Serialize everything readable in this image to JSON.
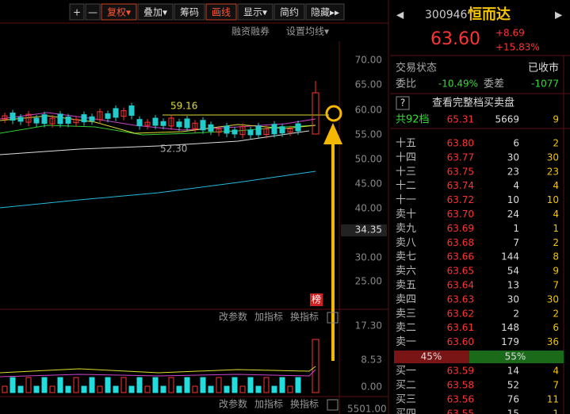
{
  "toolbar": {
    "buttons": [
      "+",
      "—",
      "复权▾",
      "叠加▾",
      "筹码",
      "画线",
      "显示▾",
      "简约",
      "隐藏▸▸"
    ],
    "links": [
      "融资融券",
      "设置均线▾"
    ]
  },
  "price_axis": [
    "70.00",
    "65.00",
    "60.00",
    "55.00",
    "50.00",
    "45.00",
    "40.00",
    "34.35",
    "30.00",
    "25.00"
  ],
  "annotations": {
    "high": "59.16",
    "low": "52.30",
    "badge": "榜"
  },
  "volume_panel": {
    "tools": [
      "改参数",
      "加指标",
      "换指标"
    ],
    "axis": [
      "17.30",
      "8.53",
      "0.00"
    ],
    "bottom_tools": [
      "改参数",
      "加指标",
      "换指标"
    ],
    "bottom_value": "5501.00"
  },
  "stock": {
    "code": "300946",
    "name": "恒而达",
    "price": "63.60",
    "change": "+8.69",
    "change_pct": "+15.83%"
  },
  "status": {
    "label": "交易状态",
    "value": "已收市"
  },
  "ratio": {
    "label": "委比",
    "value": "-10.49%",
    "diff_label": "委差",
    "diff_value": "-1077"
  },
  "full_book": {
    "icon": "?",
    "text": "查看完整档买卖盘"
  },
  "total": {
    "label": "共92档",
    "price": "65.31",
    "volume": "5669",
    "count": "9"
  },
  "asks": [
    [
      "十五",
      "63.80",
      "6",
      "2"
    ],
    [
      "十四",
      "63.77",
      "30",
      "30"
    ],
    [
      "十三",
      "63.75",
      "23",
      "23"
    ],
    [
      "十二",
      "63.74",
      "4",
      "4"
    ],
    [
      "十一",
      "63.72",
      "10",
      "10"
    ],
    [
      "卖十",
      "63.70",
      "24",
      "4"
    ],
    [
      "卖九",
      "63.69",
      "1",
      "1"
    ],
    [
      "卖八",
      "63.68",
      "7",
      "2"
    ],
    [
      "卖七",
      "63.66",
      "144",
      "8"
    ],
    [
      "卖六",
      "63.65",
      "54",
      "9"
    ],
    [
      "卖五",
      "63.64",
      "13",
      "7"
    ],
    [
      "卖四",
      "63.63",
      "30",
      "30"
    ],
    [
      "卖三",
      "63.62",
      "2",
      "2"
    ],
    [
      "卖二",
      "63.61",
      "148",
      "6"
    ],
    [
      "卖一",
      "63.60",
      "179",
      "36"
    ]
  ],
  "split": {
    "sell": "45%",
    "buy": "55%"
  },
  "bids": [
    [
      "买一",
      "63.59",
      "14",
      "4"
    ],
    [
      "买二",
      "63.58",
      "52",
      "7"
    ],
    [
      "买三",
      "63.56",
      "76",
      "11"
    ],
    [
      "买四",
      "63.55",
      "15",
      "1"
    ]
  ]
}
